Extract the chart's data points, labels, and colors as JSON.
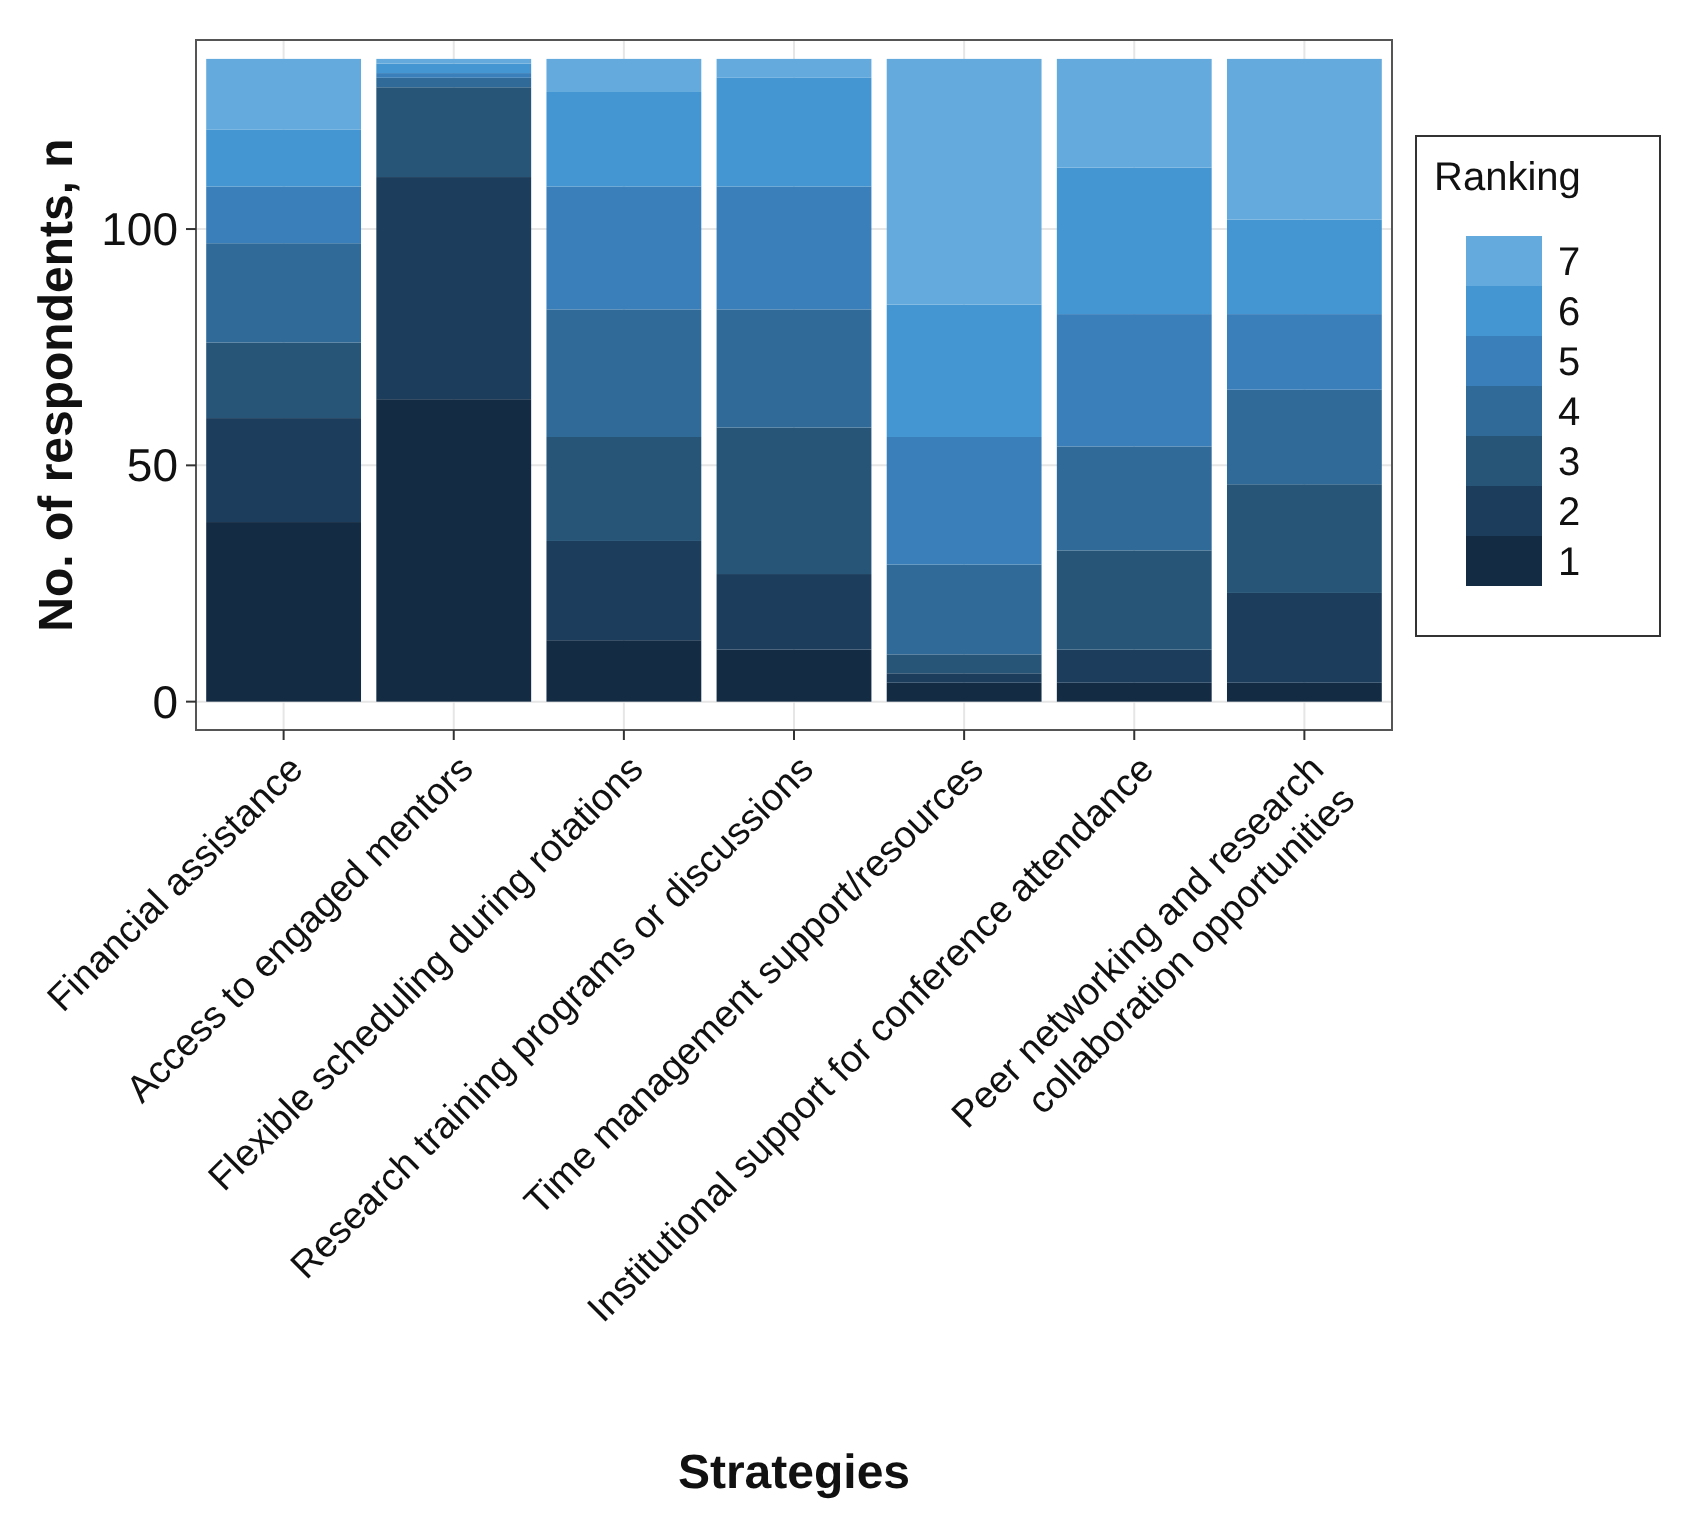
{
  "chart_data": {
    "type": "bar",
    "stacked": true,
    "xlabel": "Strategies",
    "ylabel": "No. of respondents, n",
    "legend_title": "Ranking",
    "legend": "right",
    "grid": true,
    "categories": [
      "Financial assistance",
      "Access to engaged mentors",
      "Flexible scheduling during rotations",
      "Research training programs or discussions",
      "Time management support/resources",
      "Institutional support for conference attendance",
      "Peer networking and research\ncollaboration opportunities"
    ],
    "ylim": [
      -6,
      140
    ],
    "yticks": [
      0,
      50,
      100
    ],
    "series": [
      {
        "name": "1",
        "color": "#132b43",
        "values": [
          38,
          64,
          13,
          11,
          4,
          4,
          4
        ]
      },
      {
        "name": "2",
        "color": "#1c3d5c",
        "values": [
          22,
          47,
          21,
          16,
          2,
          7,
          19
        ]
      },
      {
        "name": "3",
        "color": "#265577",
        "values": [
          16,
          19,
          22,
          31,
          4,
          21,
          23
        ]
      },
      {
        "name": "4",
        "color": "#2f6a98",
        "values": [
          21,
          2,
          27,
          25,
          19,
          22,
          20
        ]
      },
      {
        "name": "5",
        "color": "#3a7fb9",
        "values": [
          12,
          1,
          26,
          26,
          27,
          28,
          16
        ]
      },
      {
        "name": "6",
        "color": "#4396d2",
        "values": [
          12,
          2,
          20,
          23,
          28,
          31,
          20
        ]
      },
      {
        "name": "7",
        "color": "#64aadc",
        "values": [
          15,
          1,
          7,
          4,
          52,
          23,
          34
        ]
      }
    ]
  }
}
